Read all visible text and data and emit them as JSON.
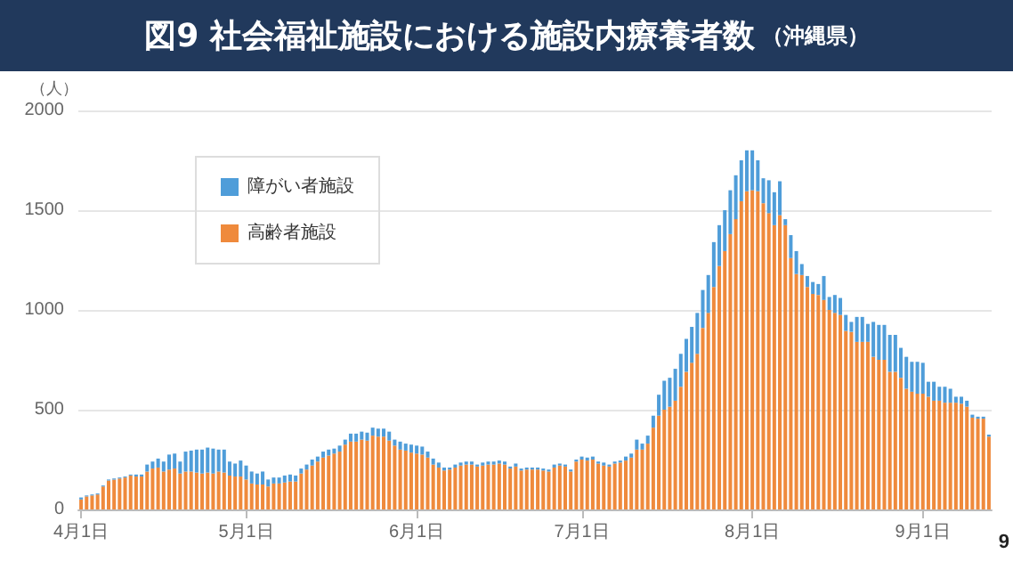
{
  "chart_data": {
    "type": "bar",
    "title": "図9 社会福祉施設における施設内療養者数",
    "subtitle": "（沖縄県）",
    "ylabel": "（人）",
    "annotations": [
      "9"
    ],
    "stacked": true,
    "grid": "y",
    "legend": "top left",
    "ylim": [
      0,
      2000
    ],
    "yticks": [
      0,
      500,
      1000,
      1500,
      2000
    ],
    "categories": [
      "4月1日",
      null,
      null,
      null,
      null,
      null,
      null,
      null,
      null,
      null,
      null,
      null,
      null,
      null,
      null,
      null,
      null,
      null,
      null,
      null,
      null,
      null,
      null,
      null,
      null,
      null,
      null,
      null,
      null,
      null,
      "5月1日",
      null,
      null,
      null,
      null,
      null,
      null,
      null,
      null,
      null,
      null,
      null,
      null,
      null,
      null,
      null,
      null,
      null,
      null,
      null,
      null,
      null,
      null,
      null,
      null,
      null,
      null,
      null,
      null,
      null,
      null,
      "6月1日",
      null,
      null,
      null,
      null,
      null,
      null,
      null,
      null,
      null,
      null,
      null,
      null,
      null,
      null,
      null,
      null,
      null,
      null,
      null,
      null,
      null,
      null,
      null,
      null,
      null,
      null,
      null,
      null,
      null,
      "7月1日",
      null,
      null,
      null,
      null,
      null,
      null,
      null,
      null,
      null,
      null,
      null,
      null,
      null,
      null,
      null,
      null,
      null,
      null,
      null,
      null,
      null,
      null,
      null,
      null,
      null,
      null,
      null,
      null,
      null,
      null,
      "8月1日",
      null,
      null,
      null,
      null,
      null,
      null,
      null,
      null,
      null,
      null,
      null,
      null,
      null,
      null,
      null,
      null,
      null,
      null,
      null,
      null,
      null,
      null,
      null,
      null,
      null,
      null,
      null,
      null,
      null,
      null,
      "9月1日",
      null,
      null,
      null,
      null,
      null,
      null,
      null,
      null,
      null,
      null,
      null,
      null
    ],
    "series": [
      {
        "name": "高齢者施設",
        "color": "#ef8a3c",
        "values": [
          50,
          65,
          70,
          75,
          115,
          145,
          150,
          155,
          160,
          170,
          165,
          165,
          190,
          205,
          210,
          190,
          200,
          205,
          180,
          190,
          190,
          185,
          180,
          185,
          180,
          190,
          185,
          170,
          165,
          165,
          150,
          130,
          125,
          125,
          115,
          130,
          130,
          135,
          140,
          140,
          180,
          200,
          220,
          240,
          260,
          270,
          280,
          290,
          325,
          340,
          340,
          350,
          345,
          370,
          365,
          365,
          345,
          320,
          300,
          295,
          285,
          280,
          275,
          260,
          225,
          210,
          195,
          200,
          210,
          220,
          225,
          225,
          215,
          220,
          225,
          225,
          230,
          225,
          205,
          215,
          195,
          200,
          200,
          200,
          195,
          190,
          210,
          220,
          215,
          190,
          240,
          250,
          245,
          250,
          230,
          220,
          215,
          230,
          235,
          245,
          260,
          300,
          300,
          330,
          410,
          470,
          500,
          515,
          545,
          615,
          690,
          735,
          780,
          910,
          985,
          1115,
          1220,
          1295,
          1380,
          1455,
          1545,
          1595,
          1600,
          1595,
          1535,
          1485,
          1425,
          1475,
          1425,
          1260,
          1180,
          1175,
          1115,
          1080,
          1075,
          1050,
          1000,
          985,
          975,
          895,
          890,
          840,
          840,
          840,
          765,
          750,
          750,
          690,
          690,
          660,
          605,
          590,
          580,
          580,
          565,
          545,
          545,
          535,
          535,
          535,
          530,
          515,
          460,
          455,
          455,
          365
        ]
      },
      {
        "name": "障がい者施設",
        "color": "#4f9dd9",
        "values": [
          10,
          5,
          5,
          5,
          5,
          5,
          5,
          5,
          5,
          5,
          10,
          10,
          35,
          35,
          45,
          50,
          75,
          75,
          60,
          100,
          105,
          115,
          120,
          125,
          125,
          110,
          115,
          70,
          65,
          80,
          70,
          60,
          55,
          65,
          35,
          30,
          30,
          35,
          35,
          30,
          25,
          25,
          30,
          25,
          30,
          30,
          25,
          30,
          25,
          40,
          40,
          40,
          40,
          40,
          40,
          40,
          45,
          30,
          40,
          35,
          40,
          40,
          40,
          30,
          30,
          25,
          15,
          10,
          15,
          15,
          15,
          15,
          10,
          15,
          15,
          15,
          15,
          15,
          10,
          15,
          10,
          10,
          10,
          10,
          10,
          10,
          15,
          10,
          10,
          10,
          10,
          15,
          15,
          15,
          10,
          15,
          10,
          10,
          10,
          20,
          20,
          50,
          30,
          40,
          60,
          105,
          145,
          145,
          160,
          165,
          165,
          180,
          205,
          190,
          190,
          225,
          205,
          205,
          220,
          220,
          205,
          205,
          200,
          155,
          125,
          165,
          165,
          170,
          30,
          115,
          115,
          55,
          55,
          60,
          55,
          120,
          65,
          90,
          85,
          80,
          50,
          125,
          125,
          90,
          175,
          175,
          175,
          185,
          185,
          150,
          160,
          150,
          160,
          155,
          75,
          95,
          70,
          80,
          70,
          30,
          35,
          30,
          15,
          10,
          10,
          10
        ]
      }
    ]
  }
}
